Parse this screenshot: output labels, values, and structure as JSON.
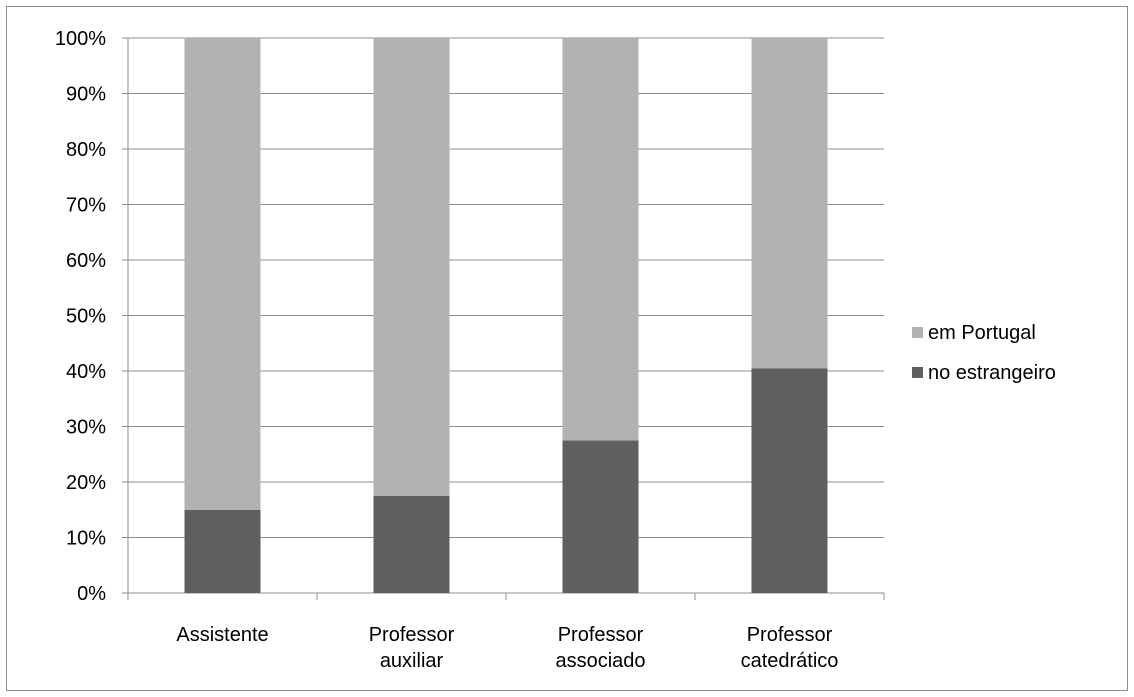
{
  "chart_data": {
    "type": "bar",
    "stacked": true,
    "categories": [
      [
        "Assistente"
      ],
      [
        "Professor",
        "auxiliar"
      ],
      [
        "Professor",
        "associado"
      ],
      [
        "Professor",
        "catedrático"
      ]
    ],
    "series": [
      {
        "name": "no estrangeiro",
        "values": [
          15,
          17.5,
          27.5,
          40.5
        ],
        "color": "#5f5f5f"
      },
      {
        "name": "em Portugal",
        "values": [
          85,
          82.5,
          72.5,
          59.5
        ],
        "color": "#b2b2b2"
      }
    ],
    "ylim": [
      0,
      100
    ],
    "yticks": [
      "0%",
      "10%",
      "20%",
      "30%",
      "40%",
      "50%",
      "60%",
      "70%",
      "80%",
      "90%",
      "100%"
    ],
    "grid": true,
    "legend": {
      "position": "right",
      "items": [
        {
          "name": "em Portugal",
          "color": "#b2b2b2"
        },
        {
          "name": "no estrangeiro",
          "color": "#5f5f5f"
        }
      ]
    },
    "title": "",
    "xlabel": "",
    "ylabel": ""
  }
}
